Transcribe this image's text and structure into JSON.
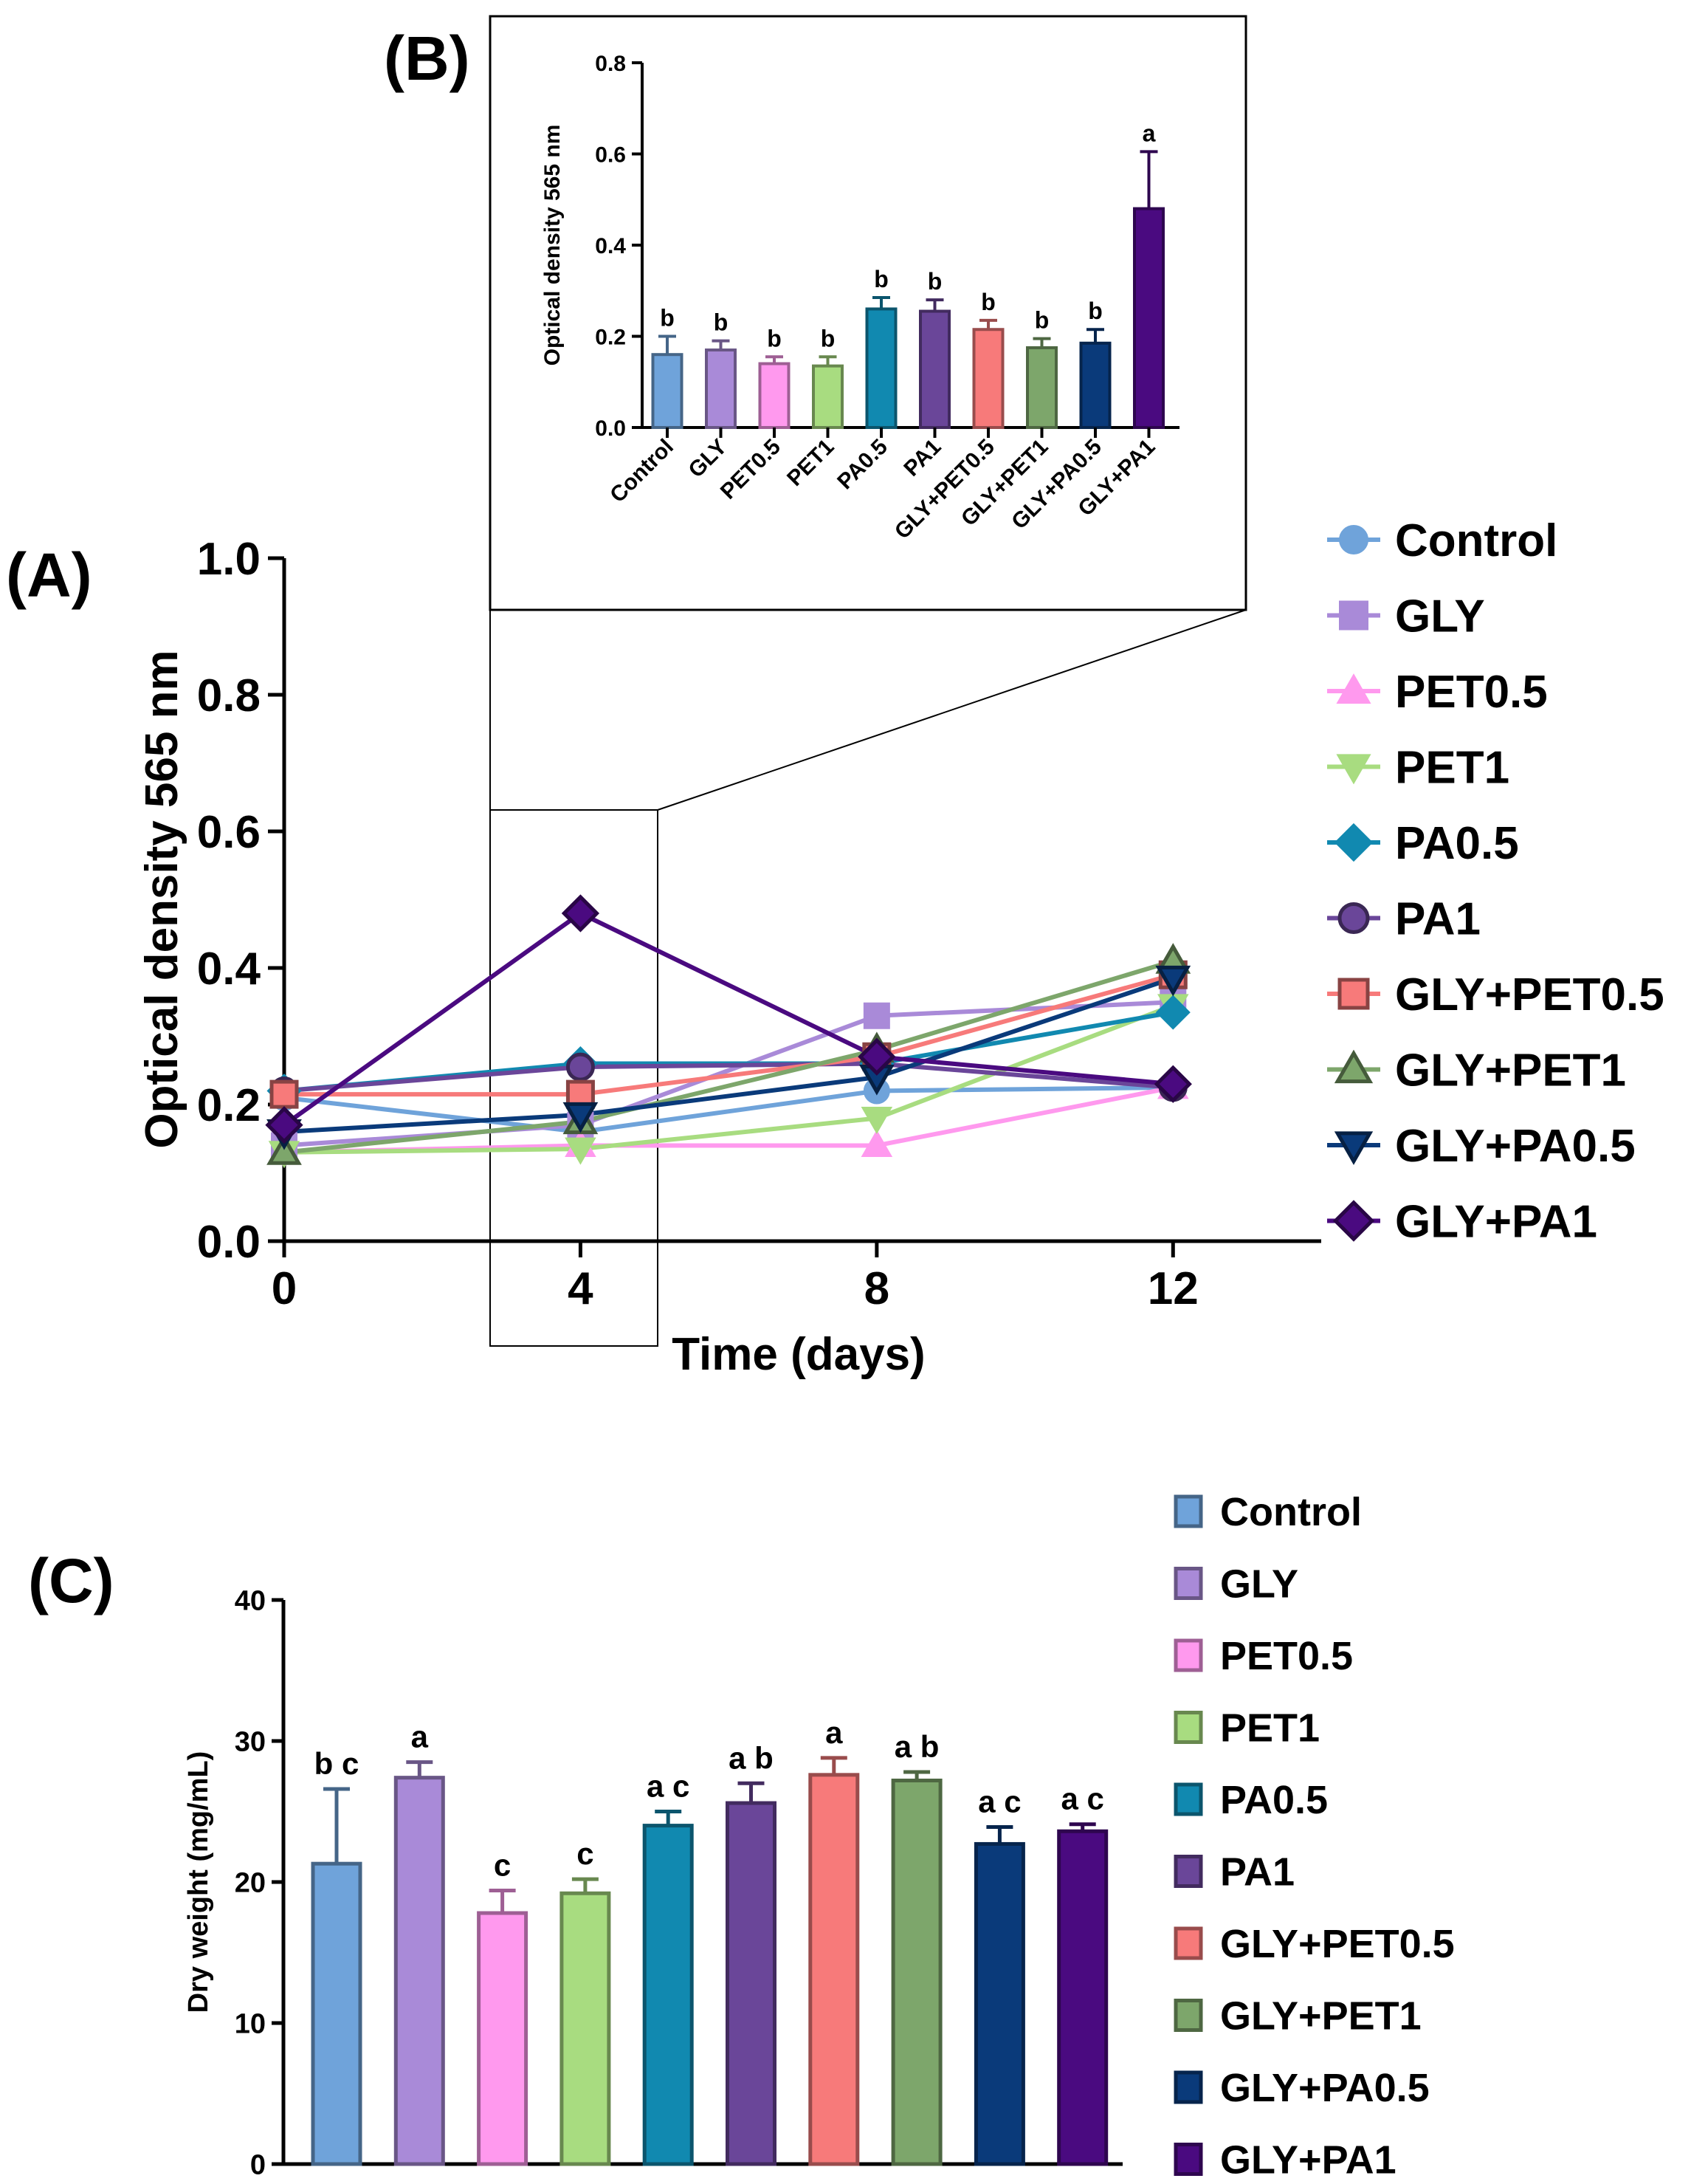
{
  "panel_labels": {
    "a": "(A)",
    "b": "(B)",
    "c": "(C)"
  },
  "colors": {
    "Control": "#6fa3da",
    "GLY": "#a98ad8",
    "PET0.5": "#ff99ee",
    "PET1": "#a8dc80",
    "PA0.5": "#1189b0",
    "PA1": "#6a4699",
    "GLY+PET0.5": "#f77a7a",
    "GLY+PET1": "#7da66b",
    "GLY+PA0.5": "#0a3a7a",
    "GLY+PA1": "#4a0a80"
  },
  "chart_data": [
    {
      "id": "A",
      "type": "line",
      "xlabel": "Time (days)",
      "ylabel": "Optical density 565 nm",
      "x": [
        0,
        4,
        8,
        12
      ],
      "x_ticks": [
        "0",
        "4",
        "8",
        "12"
      ],
      "xlim": [
        0,
        14
      ],
      "ylim": [
        0,
        1
      ],
      "y_ticks": [
        "0.0",
        "0.2",
        "0.4",
        "0.6",
        "0.8",
        "1.0"
      ],
      "legend": "right",
      "series": [
        {
          "name": "Control",
          "marker": "circle",
          "values": [
            0.21,
            0.16,
            0.22,
            0.225
          ]
        },
        {
          "name": "GLY",
          "marker": "square",
          "values": [
            0.14,
            0.17,
            0.33,
            0.35
          ]
        },
        {
          "name": "PET0.5",
          "marker": "triangle-up",
          "values": [
            0.13,
            0.14,
            0.14,
            0.225
          ]
        },
        {
          "name": "PET1",
          "marker": "triangle-down",
          "values": [
            0.13,
            0.135,
            0.18,
            0.345
          ]
        },
        {
          "name": "PA0.5",
          "marker": "diamond",
          "values": [
            0.22,
            0.26,
            0.26,
            0.335
          ]
        },
        {
          "name": "PA1",
          "marker": "circle",
          "values": [
            0.22,
            0.255,
            0.26,
            0.225
          ]
        },
        {
          "name": "GLY+PET0.5",
          "marker": "square",
          "values": [
            0.215,
            0.215,
            0.27,
            0.39
          ]
        },
        {
          "name": "GLY+PET1",
          "marker": "triangle-up",
          "values": [
            0.13,
            0.175,
            0.28,
            0.41
          ]
        },
        {
          "name": "GLY+PA0.5",
          "marker": "triangle-down",
          "values": [
            0.16,
            0.185,
            0.24,
            0.385
          ]
        },
        {
          "name": "GLY+PA1",
          "marker": "diamond",
          "values": [
            0.17,
            0.48,
            0.27,
            0.23
          ]
        }
      ]
    },
    {
      "id": "B",
      "type": "bar",
      "ylabel": "Optical density 565 nm",
      "ylim": [
        0,
        0.8
      ],
      "y_ticks": [
        "0.0",
        "0.2",
        "0.4",
        "0.6",
        "0.8"
      ],
      "categories": [
        "Control",
        "GLY",
        "PET0.5",
        "PET1",
        "PA0.5",
        "PA1",
        "GLY+PET0.5",
        "GLY+PET1",
        "GLY+PA0.5",
        "GLY+PA1"
      ],
      "values": [
        0.16,
        0.17,
        0.14,
        0.135,
        0.26,
        0.255,
        0.215,
        0.175,
        0.185,
        0.48
      ],
      "errors": [
        0.04,
        0.02,
        0.015,
        0.02,
        0.025,
        0.025,
        0.02,
        0.02,
        0.03,
        0.125
      ],
      "letters": [
        "b",
        "b",
        "b",
        "b",
        "b",
        "b",
        "b",
        "b",
        "b",
        "a"
      ]
    },
    {
      "id": "C",
      "type": "bar",
      "ylabel": "Dry weight (mg/mL)",
      "ylim": [
        0,
        40
      ],
      "y_ticks": [
        "0",
        "10",
        "20",
        "30",
        "40"
      ],
      "legend": "right",
      "categories": [
        "Control",
        "GLY",
        "PET0.5",
        "PET1",
        "PA0.5",
        "PA1",
        "GLY+PET0.5",
        "GLY+PET1",
        "GLY+PA0.5",
        "GLY+PA1"
      ],
      "values": [
        21.3,
        27.4,
        17.8,
        19.2,
        24.0,
        25.6,
        27.6,
        27.2,
        22.7,
        23.6
      ],
      "errors": [
        5.3,
        1.1,
        1.6,
        1.0,
        1.0,
        1.4,
        1.2,
        0.6,
        1.2,
        0.5
      ],
      "letters": [
        "b c",
        "a",
        "c",
        "c",
        "a c",
        "a b",
        "a",
        "a b",
        "a c",
        "a c"
      ]
    }
  ]
}
